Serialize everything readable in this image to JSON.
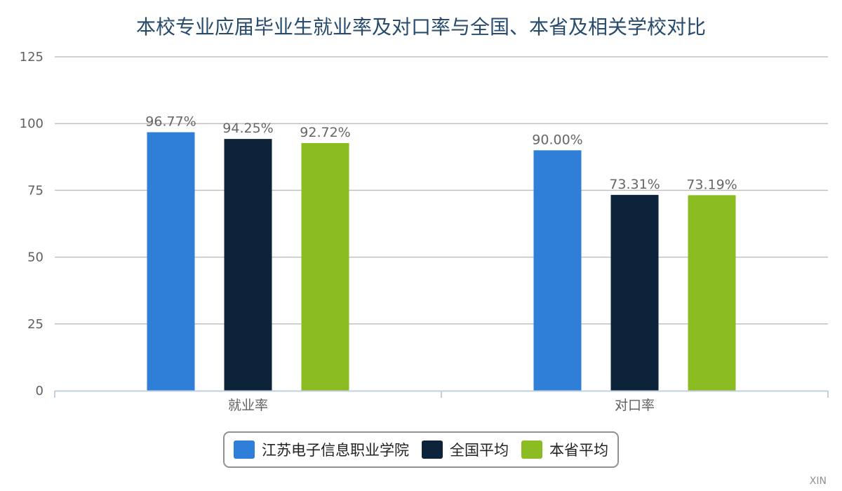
{
  "chart_data": {
    "type": "bar",
    "title": "本校专业应届毕业生就业率及对口率与全国、本省及相关学校对比",
    "xlabel": "",
    "ylabel": "",
    "categories": [
      "就业率",
      "对口率"
    ],
    "series": [
      {
        "name": "江苏电子信息职业学院",
        "values": [
          96.77,
          90.0
        ],
        "labels": [
          "96.77%",
          "90.00%"
        ],
        "color": "#2f7ed8"
      },
      {
        "name": "全国平均",
        "values": [
          94.25,
          73.31
        ],
        "labels": [
          "94.25%",
          "73.31%"
        ],
        "color": "#0d233a"
      },
      {
        "name": "本省平均",
        "values": [
          92.72,
          73.19
        ],
        "labels": [
          "92.72%",
          "73.19%"
        ],
        "color": "#8bbc21"
      }
    ],
    "ylim": [
      0,
      125
    ],
    "yticks": [
      "0",
      "25",
      "50",
      "75",
      "100",
      "125"
    ],
    "grid": true,
    "legend_position": "bottom-center",
    "credit": "XIN"
  }
}
